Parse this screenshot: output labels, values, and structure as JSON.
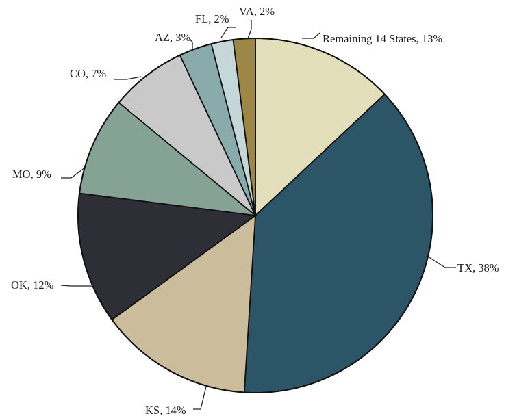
{
  "chart_data": {
    "type": "pie",
    "title": "",
    "slices": [
      {
        "label": "Remaining 14 States, 13%",
        "name": "Remaining 14 States",
        "value": 13,
        "color": "#e3dfbb"
      },
      {
        "label": "TX, 38%",
        "name": "TX",
        "value": 38,
        "color": "#2c5567"
      },
      {
        "label": "KS, 14%",
        "name": "KS",
        "value": 14,
        "color": "#cbbc9c"
      },
      {
        "label": "OK, 12%",
        "name": "OK",
        "value": 12,
        "color": "#2e2e36"
      },
      {
        "label": "MO, 9%",
        "name": "MO",
        "value": 9,
        "color": "#85a395"
      },
      {
        "label": "CO, 7%",
        "name": "CO",
        "value": 7,
        "color": "#c9c9c9"
      },
      {
        "label": "AZ, 3%",
        "name": "AZ",
        "value": 3,
        "color": "#8aabab"
      },
      {
        "label": "FL, 2%",
        "name": "FL",
        "value": 2,
        "color": "#c5d7d8"
      },
      {
        "label": "VA, 2%",
        "name": "VA",
        "value": 2,
        "color": "#9c8747"
      }
    ]
  }
}
